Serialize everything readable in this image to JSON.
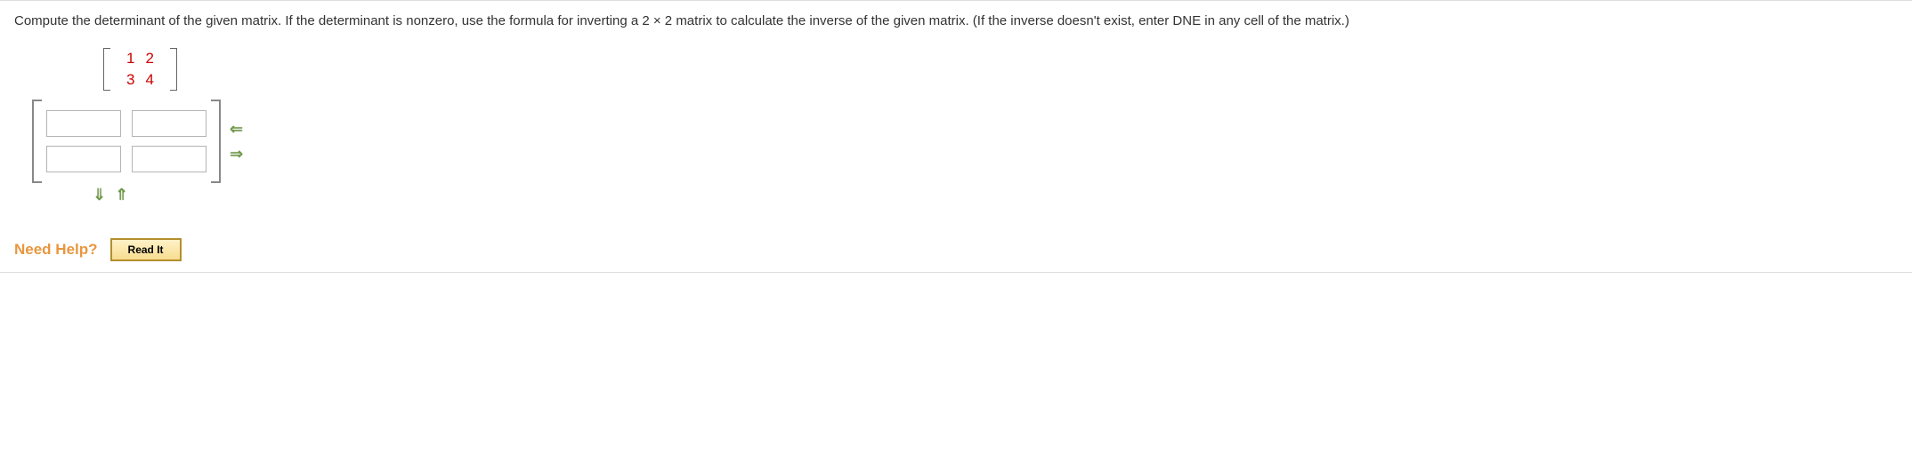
{
  "question": {
    "text": "Compute the determinant of the given matrix. If the determinant is nonzero, use the formula for inverting a 2 × 2 matrix to calculate the inverse of the given matrix. (If the inverse doesn't exist, enter DNE in any cell of the matrix.)"
  },
  "given_matrix": {
    "rows": [
      [
        "1",
        "2"
      ],
      [
        "3",
        "4"
      ]
    ],
    "value_color": "#c00000",
    "bracket_color": "#666666"
  },
  "answer_matrix": {
    "rows": 2,
    "cols": 2,
    "cells": [
      "",
      "",
      "",
      ""
    ],
    "input_border": "#b4b4b4",
    "bracket_color": "#888888"
  },
  "arrows": {
    "remove_col": "⇐",
    "add_col": "⇒",
    "remove_row": "⇓",
    "add_row": "⇑",
    "color": "#6c9a3f"
  },
  "help": {
    "label": "Need Help?",
    "label_color": "#e9963e",
    "read_it": "Read It",
    "button_bg_top": "#fff2c8",
    "button_bg_bottom": "#f7dd8f",
    "button_border": "#b38f2e"
  }
}
